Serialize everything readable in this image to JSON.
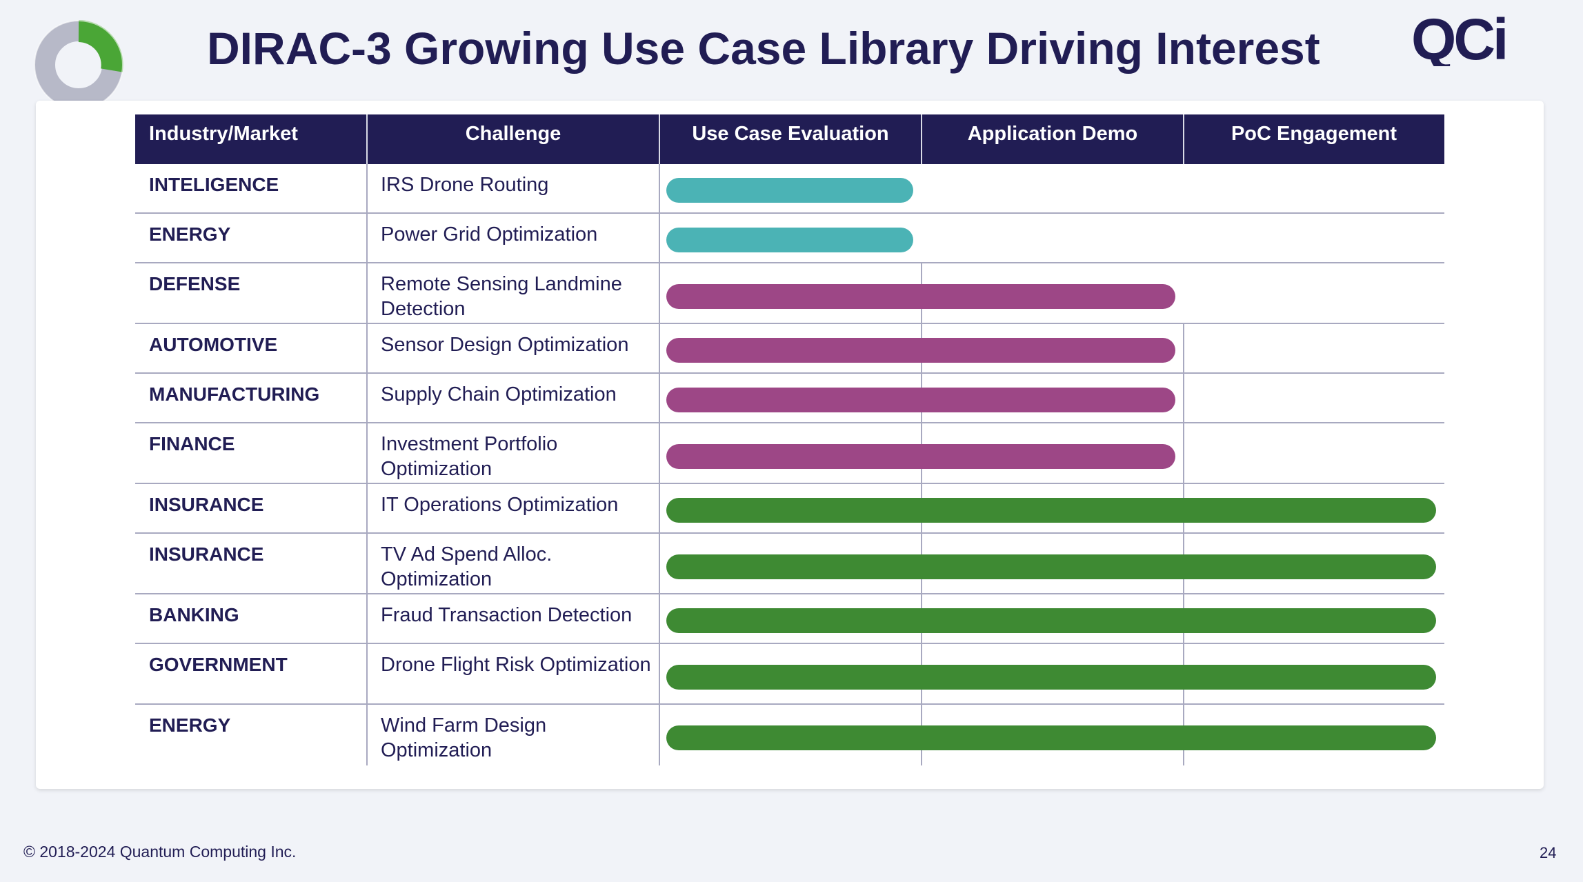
{
  "header": {
    "title": "DIRAC-3 Growing Use Case Library Driving Interest"
  },
  "brand": {
    "logo_text": "QCi",
    "color": "#211d54"
  },
  "table": {
    "columns": [
      "Industry/Market",
      "Challenge",
      "Use Case Evaluation",
      "Application Demo",
      "PoC Engagement"
    ],
    "rows": [
      {
        "industry": "INTELIGENCE",
        "challenge": "IRS Drone Routing",
        "stage": "Use Case Evaluation",
        "stage_count": 1
      },
      {
        "industry": "ENERGY",
        "challenge": "Power Grid Optimization",
        "stage": "Use Case Evaluation",
        "stage_count": 1
      },
      {
        "industry": "DEFENSE",
        "challenge": "Remote Sensing Landmine Detection",
        "stage": "Application Demo",
        "stage_count": 2
      },
      {
        "industry": "AUTOMOTIVE",
        "challenge": "Sensor Design Optimization",
        "stage": "Application Demo",
        "stage_count": 2
      },
      {
        "industry": "MANUFACTURING",
        "challenge": "Supply Chain Optimization",
        "stage": "Application Demo",
        "stage_count": 2
      },
      {
        "industry": "FINANCE",
        "challenge": "Investment Portfolio Optimization",
        "stage": "Application Demo",
        "stage_count": 2
      },
      {
        "industry": "INSURANCE",
        "challenge": "IT Operations Optimization",
        "stage": "PoC Engagement",
        "stage_count": 3
      },
      {
        "industry": "INSURANCE",
        "challenge": "TV Ad Spend Alloc. Optimization",
        "stage": "PoC Engagement",
        "stage_count": 3
      },
      {
        "industry": "BANKING",
        "challenge": "Fraud Transaction Detection",
        "stage": "PoC Engagement",
        "stage_count": 3
      },
      {
        "industry": "GOVERNMENT",
        "challenge": "Drone Flight Risk Optimization",
        "stage": "PoC Engagement",
        "stage_count": 3
      },
      {
        "industry": "ENERGY",
        "challenge": "Wind Farm Design Optimization",
        "stage": "PoC Engagement",
        "stage_count": 3
      }
    ]
  },
  "stage_colors": {
    "Use Case Evaluation": "#4bb3b5",
    "Application Demo": "#9d4786",
    "PoC Engagement": "#3e8a33"
  },
  "footer": {
    "copyright": "© 2018-2024 Quantum Computing Inc.",
    "page_number": "24"
  }
}
